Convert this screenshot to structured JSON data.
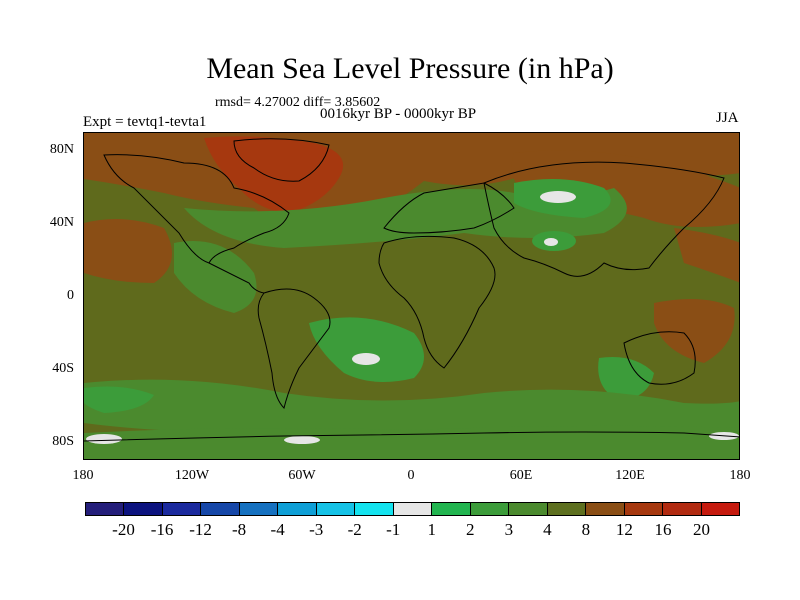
{
  "title": "Mean Sea Level Pressure (in hPa)",
  "stats_line": "rmsd= 4.27002 diff= 3.85602",
  "period_line": "0016kyr BP - 0000kyr BP",
  "experiment_line": "Expt = tevtq1-tevta1",
  "season": "JJA",
  "map": {
    "lat_ticks": [
      "80N",
      "40N",
      "0",
      "40S",
      "80S"
    ],
    "lon_ticks": [
      "180",
      "120W",
      "60W",
      "0",
      "60E",
      "120E",
      "180"
    ]
  },
  "colorbar": {
    "labels": [
      "-20",
      "-16",
      "-12",
      "-8",
      "-4",
      "-3",
      "-2",
      "-1",
      "1",
      "2",
      "3",
      "4",
      "8",
      "12",
      "16",
      "20"
    ],
    "colors": [
      "#241e7a",
      "#0c137f",
      "#1b2a9e",
      "#1647a8",
      "#1671c0",
      "#0e9fd6",
      "#16c2e6",
      "#14e3ef",
      "#e6e6e6",
      "#22b550",
      "#3c9c3a",
      "#4b8a2e",
      "#5e7020",
      "#8a4e15",
      "#a6380f",
      "#b12a10",
      "#c51a0e"
    ]
  },
  "colors": {
    "background": "#5f6a1c",
    "land_line": "#000000"
  }
}
